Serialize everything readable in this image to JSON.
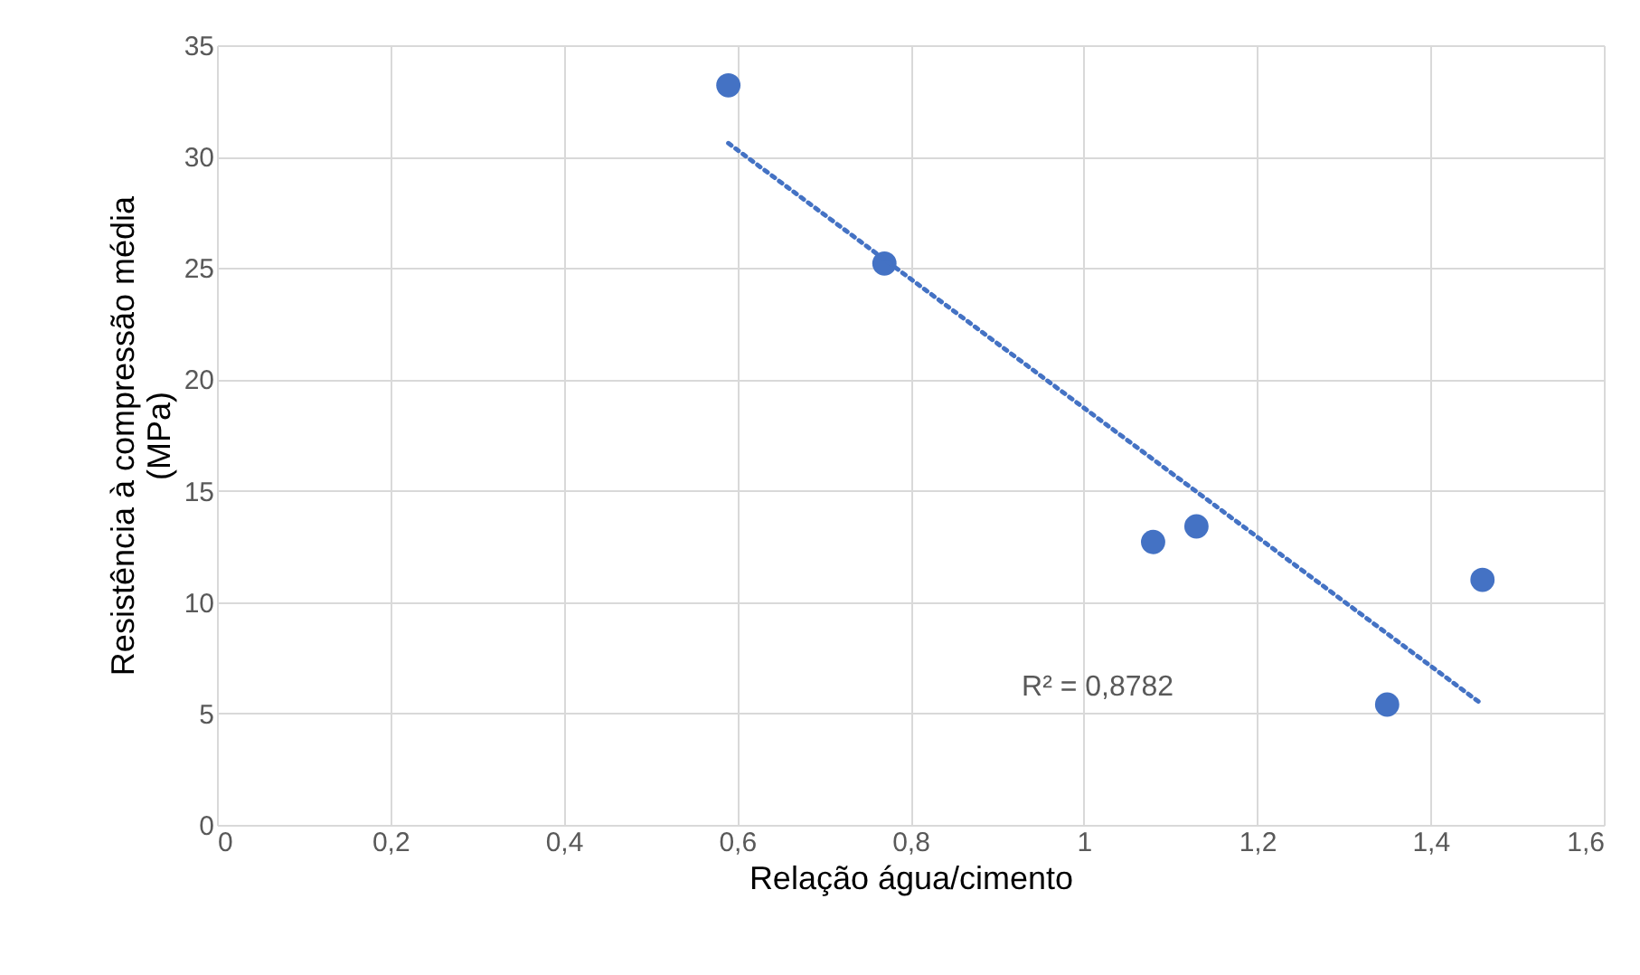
{
  "chart_data": {
    "type": "scatter",
    "xlabel": "Relação água/cimento",
    "ylabel": "Resistência à compressão média\n(MPa)",
    "x": [
      0.59,
      0.77,
      1.08,
      1.13,
      1.35,
      1.46
    ],
    "series": [
      {
        "color": "#4472c4",
        "marker": "circle",
        "values": [
          33.2,
          25.2,
          12.7,
          13.4,
          5.4,
          11.0
        ]
      },
      {
        "type": "line",
        "color": "#4472c4",
        "line_style": "dotted",
        "x": [
          0.59,
          1.46
        ],
        "values": [
          30.6,
          5.4
        ]
      }
    ],
    "xlim": [
      0,
      1.6
    ],
    "ylim": [
      0,
      35
    ],
    "xticks": [
      0,
      {
        "value": 0.2,
        "label": "0,2"
      },
      {
        "value": 0.4,
        "label": "0,4"
      },
      {
        "value": 0.6,
        "label": "0,6"
      },
      {
        "value": 0.8,
        "label": "0,8"
      },
      1,
      {
        "value": 1.2,
        "label": "1,2"
      },
      {
        "value": 1.4,
        "label": "1,4"
      },
      {
        "value": 1.6,
        "label": "1,6"
      }
    ],
    "yticks": [
      0,
      5,
      10,
      15,
      20,
      25,
      30,
      35
    ],
    "annotations": [
      "R² = 0,8782"
    ],
    "grid": true
  }
}
